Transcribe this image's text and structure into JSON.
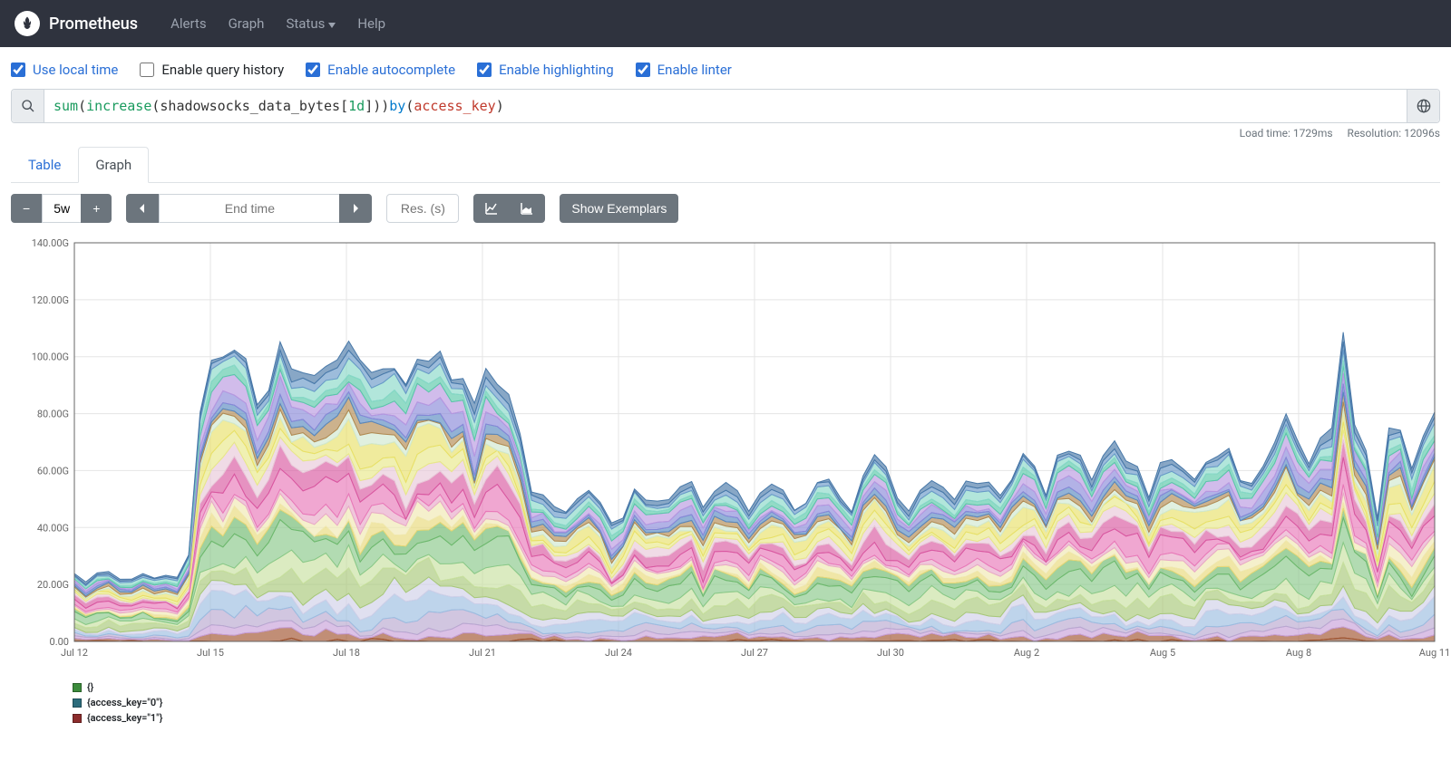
{
  "navbar": {
    "brand": "Prometheus",
    "links": [
      "Alerts",
      "Graph",
      "Status",
      "Help"
    ]
  },
  "options": [
    {
      "label": "Use local time",
      "checked": true
    },
    {
      "label": "Enable query history",
      "checked": false
    },
    {
      "label": "Enable autocomplete",
      "checked": true
    },
    {
      "label": "Enable highlighting",
      "checked": true
    },
    {
      "label": "Enable linter",
      "checked": true
    }
  ],
  "query": {
    "tokens": [
      {
        "t": "sum",
        "c": "fn"
      },
      {
        "t": "(",
        "c": "id"
      },
      {
        "t": "increase",
        "c": "fn"
      },
      {
        "t": "(",
        "c": "id"
      },
      {
        "t": "shadowsocks_data_bytes",
        "c": "id"
      },
      {
        "t": "[",
        "c": "id"
      },
      {
        "t": "1d",
        "c": "num"
      },
      {
        "t": "]))",
        "c": "id"
      },
      {
        "t": " by ",
        "c": "kw"
      },
      {
        "t": "(",
        "c": "id"
      },
      {
        "t": "access_key",
        "c": "lab"
      },
      {
        "t": ")",
        "c": "id"
      }
    ]
  },
  "stats": {
    "load_time": "Load time: 1729ms",
    "resolution": "Resolution: 12096s"
  },
  "tabs": {
    "table": "Table",
    "graph": "Graph",
    "active": "graph"
  },
  "controls": {
    "range": "5w",
    "end_time_placeholder": "End time",
    "res_placeholder": "Res. (s)",
    "show_exemplars": "Show Exemplars"
  },
  "chart": {
    "type": "stacked-area",
    "ylim": [
      0,
      140
    ],
    "ytick_step": 20,
    "y_suffix": "G",
    "y_format": ".00",
    "x_ticks": [
      "Jul 12",
      "Jul 15",
      "Jul 18",
      "Jul 21",
      "Jul 24",
      "Jul 27",
      "Jul 30",
      "Aug 2",
      "Aug 5",
      "Aug 8",
      "Aug 11"
    ],
    "n_points": 120,
    "plot_bg": "#ffffff",
    "grid_color": "#e5e5e5",
    "axis_color": "#666666",
    "series": [
      {
        "base": 0,
        "amp": 2,
        "color": "#8b4a2b"
      },
      {
        "base": 2,
        "amp": 3,
        "color": "#a0522d"
      },
      {
        "base": 2,
        "amp": 2.5,
        "color": "#c8a0d8"
      },
      {
        "base": 3,
        "amp": 4,
        "color": "#b8a8d0"
      },
      {
        "base": 4,
        "amp": 5,
        "color": "#9bbde0"
      },
      {
        "base": 3,
        "amp": 3,
        "color": "#d0d0e8"
      },
      {
        "base": 5,
        "amp": 6,
        "color": "#a8c878"
      },
      {
        "base": 4,
        "amp": 5,
        "color": "#c8e0a0"
      },
      {
        "base": 6,
        "amp": 7,
        "color": "#88c888"
      },
      {
        "base": 3,
        "amp": 3,
        "color": "#6db86d"
      },
      {
        "base": 2,
        "amp": 4,
        "color": "#e8d878"
      },
      {
        "base": 3,
        "amp": 3,
        "color": "#f0e8b0"
      },
      {
        "base": 2,
        "amp": 2,
        "color": "#e8a8c8"
      },
      {
        "base": 5,
        "amp": 8,
        "color": "#e878b8"
      },
      {
        "base": 4,
        "amp": 5,
        "color": "#d858a0"
      },
      {
        "base": 3,
        "amp": 4,
        "color": "#e8c8d8"
      },
      {
        "base": 3,
        "amp": 3,
        "color": "#e8e888"
      },
      {
        "base": 4,
        "amp": 6,
        "color": "#e8e068"
      },
      {
        "base": 2,
        "amp": 2,
        "color": "#d0e8d0"
      },
      {
        "base": 2,
        "amp": 3,
        "color": "#b08850"
      },
      {
        "base": 2,
        "amp": 2,
        "color": "#5888c0"
      },
      {
        "base": 3,
        "amp": 4,
        "color": "#8888d8"
      },
      {
        "base": 3,
        "amp": 4,
        "color": "#b898e0"
      },
      {
        "base": 2,
        "amp": 2,
        "color": "#58c8a8"
      },
      {
        "base": 3,
        "amp": 3,
        "color": "#88d8c8"
      },
      {
        "base": 2,
        "amp": 2,
        "color": "#6898c8"
      },
      {
        "base": 2,
        "amp": 3,
        "color": "#4878a8"
      }
    ],
    "envelope": [
      0,
      0,
      0,
      0,
      0,
      0,
      0,
      0,
      0,
      0,
      0.1,
      0.5,
      0.9,
      1.0,
      1.0,
      0.95,
      0.85,
      0.88,
      0.92,
      0.86,
      0.78,
      0.82,
      0.88,
      0.95,
      1.0,
      0.98,
      0.92,
      0.96,
      0.94,
      0.88,
      0.96,
      0.92,
      0.98,
      0.92,
      0.9,
      0.86,
      0.88,
      0.82,
      0.7,
      0.55,
      0.4,
      0.35,
      0.32,
      0.3,
      0.32,
      0.36,
      0.3,
      0.28,
      0.34,
      0.38,
      0.36,
      0.3,
      0.32,
      0.38,
      0.36,
      0.3,
      0.34,
      0.4,
      0.36,
      0.3,
      0.34,
      0.4,
      0.38,
      0.3,
      0.34,
      0.45,
      0.42,
      0.36,
      0.3,
      0.42,
      0.52,
      0.48,
      0.35,
      0.3,
      0.35,
      0.4,
      0.38,
      0.35,
      0.42,
      0.48,
      0.44,
      0.38,
      0.45,
      0.52,
      0.48,
      0.42,
      0.48,
      0.56,
      0.5,
      0.42,
      0.5,
      0.58,
      0.52,
      0.44,
      0.42,
      0.5,
      0.56,
      0.5,
      0.44,
      0.52,
      0.6,
      0.56,
      0.48,
      0.42,
      0.5,
      0.6,
      0.66,
      0.58,
      0.5,
      0.56,
      0.64,
      0.7,
      0.62,
      0.52,
      0.6,
      0.68,
      0.64,
      0.56,
      0.62,
      0.7
    ]
  },
  "legend": [
    {
      "label": "{}",
      "color": "#3c8c3c"
    },
    {
      "label": "{access_key=\"0\"}",
      "color": "#2c6c7c"
    },
    {
      "label": "{access_key=\"1\"}",
      "color": "#8c2c2c"
    }
  ]
}
